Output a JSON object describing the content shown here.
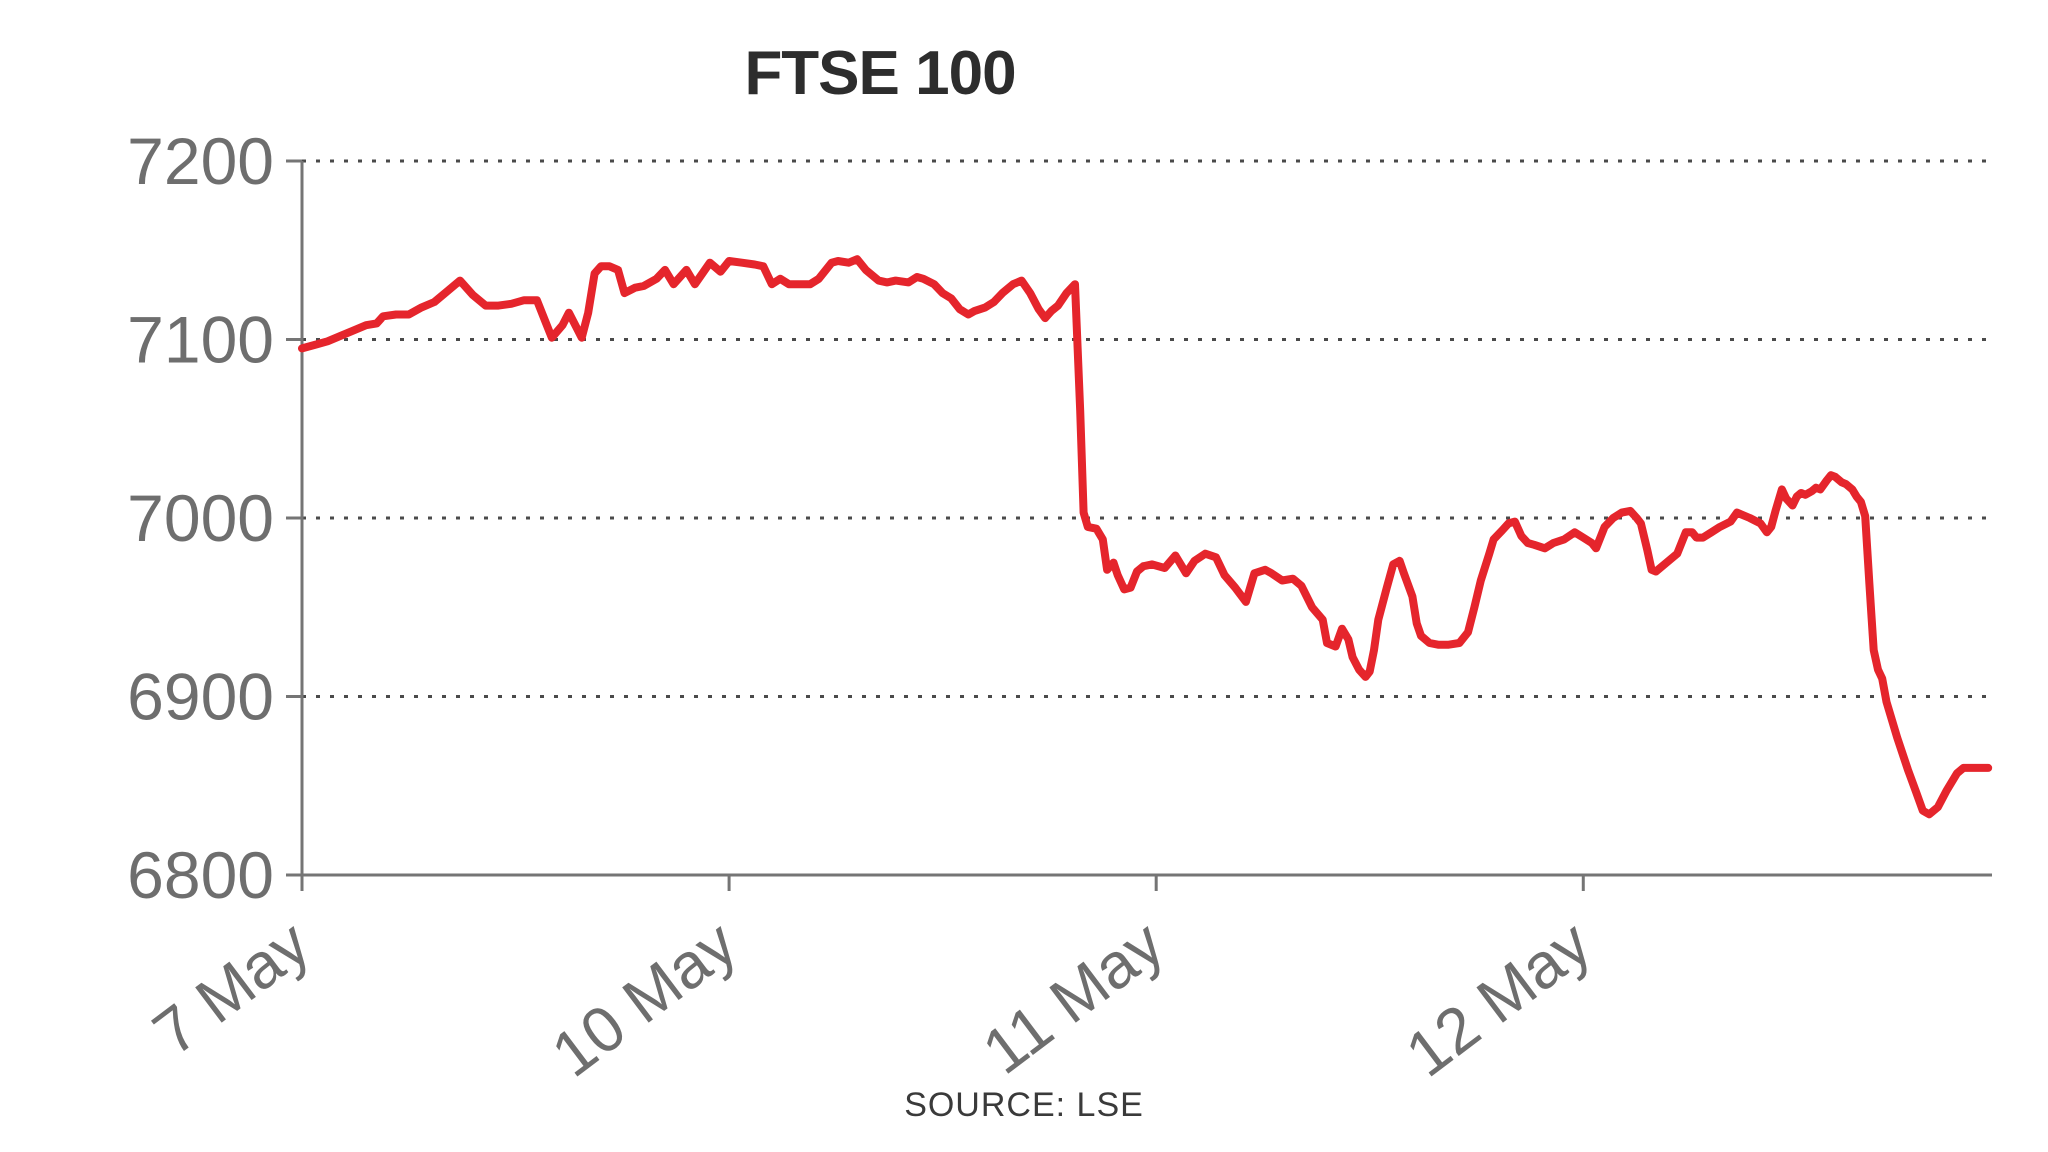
{
  "chart_data": {
    "type": "line",
    "title": "FTSE 100",
    "source_label": "SOURCE: LSE",
    "xlabel": "",
    "ylabel": "",
    "legend": "none",
    "grid": "horizontal dotted gridlines at labeled y ticks",
    "x_unit": "trading days (7 May = 0, 10 May = 1, 11 May = 2, 12 May = 3; intraday fractions)",
    "x_range": [
      0,
      3.957
    ],
    "y_range": [
      6800,
      7200
    ],
    "y_ticks": [
      6800,
      6900,
      7000,
      7100,
      7200
    ],
    "x_tick_positions": [
      0,
      1,
      2,
      3
    ],
    "x_tick_labels": [
      "7 May",
      "10 May",
      "11 May",
      "12 May"
    ],
    "line_color": "#e5252c",
    "axis_color": "#757575",
    "grid_color": "#4a4a4a",
    "tick_label_color": "#6e6e6e",
    "title_color": "#2d2d2d",
    "source_color": "#3a3a3a",
    "series": [
      {
        "name": "FTSE 100",
        "x": [
          0.0,
          0.03,
          0.06,
          0.09,
          0.12,
          0.15,
          0.175,
          0.19,
          0.22,
          0.25,
          0.28,
          0.31,
          0.34,
          0.37,
          0.4,
          0.43,
          0.46,
          0.49,
          0.52,
          0.55,
          0.57,
          0.585,
          0.61,
          0.625,
          0.64,
          0.655,
          0.67,
          0.685,
          0.7,
          0.72,
          0.74,
          0.755,
          0.78,
          0.8,
          0.83,
          0.85,
          0.87,
          0.9,
          0.92,
          0.955,
          0.98,
          1.0,
          1.03,
          1.06,
          1.08,
          1.1,
          1.12,
          1.14,
          1.17,
          1.19,
          1.21,
          1.24,
          1.255,
          1.28,
          1.3,
          1.32,
          1.35,
          1.37,
          1.39,
          1.42,
          1.44,
          1.455,
          1.48,
          1.5,
          1.52,
          1.54,
          1.56,
          1.575,
          1.6,
          1.62,
          1.64,
          1.665,
          1.685,
          1.705,
          1.725,
          1.74,
          1.755,
          1.77,
          1.79,
          1.81,
          1.822,
          1.83,
          1.84,
          1.86,
          1.875,
          1.885,
          1.9,
          1.91,
          1.925,
          1.94,
          1.955,
          1.97,
          1.99,
          2.02,
          2.045,
          2.07,
          2.09,
          2.115,
          2.14,
          2.16,
          2.185,
          2.21,
          2.23,
          2.255,
          2.27,
          2.295,
          2.32,
          2.34,
          2.365,
          2.39,
          2.4,
          2.42,
          2.435,
          2.45,
          2.46,
          2.475,
          2.49,
          2.5,
          2.51,
          2.52,
          2.54,
          2.555,
          2.57,
          2.58,
          2.6,
          2.61,
          2.62,
          2.64,
          2.66,
          2.685,
          2.71,
          2.73,
          2.745,
          2.76,
          2.78,
          2.79,
          2.81,
          2.825,
          2.84,
          2.855,
          2.87,
          2.885,
          2.91,
          2.93,
          2.955,
          2.98,
          3.0,
          3.02,
          3.03,
          3.05,
          3.07,
          3.09,
          3.11,
          3.125,
          3.135,
          3.15,
          3.16,
          3.17,
          3.195,
          3.22,
          3.24,
          3.255,
          3.265,
          3.28,
          3.3,
          3.32,
          3.345,
          3.36,
          3.37,
          3.39,
          3.415,
          3.43,
          3.44,
          3.45,
          3.465,
          3.475,
          3.49,
          3.5,
          3.51,
          3.52,
          3.535,
          3.545,
          3.555,
          3.57,
          3.58,
          3.59,
          3.605,
          3.615,
          3.63,
          3.64,
          3.65,
          3.66,
          3.665,
          3.67,
          3.675,
          3.68,
          3.69,
          3.7,
          3.71,
          3.735,
          3.76,
          3.78,
          3.795,
          3.81,
          3.83,
          3.85,
          3.875,
          3.89,
          3.92,
          3.948
        ],
        "values": [
          7095,
          7097,
          7099,
          7102,
          7105,
          7108,
          7109,
          7113,
          7114,
          7114,
          7118,
          7121,
          7127,
          7133,
          7125,
          7119,
          7119,
          7120,
          7122,
          7122,
          7110,
          7101,
          7108,
          7115,
          7108,
          7101,
          7115,
          7137,
          7141,
          7141,
          7139,
          7126,
          7129,
          7130,
          7134,
          7139,
          7131,
          7139,
          7131,
          7143,
          7138,
          7144,
          7143,
          7142,
          7141,
          7131,
          7134,
          7131,
          7131,
          7131,
          7134,
          7143,
          7144,
          7143,
          7145,
          7139,
          7133,
          7132,
          7133,
          7132,
          7135,
          7134,
          7131,
          7126,
          7123,
          7117,
          7114,
          7116,
          7118,
          7121,
          7126,
          7131,
          7133,
          7126,
          7117,
          7112,
          7116,
          7119,
          7126,
          7131,
          7060,
          7003,
          6995,
          6994,
          6988,
          6971,
          6975,
          6968,
          6960,
          6961,
          6970,
          6973,
          6974,
          6972,
          6979,
          6969,
          6976,
          6980,
          6978,
          6968,
          6961,
          6953,
          6969,
          6971,
          6969,
          6965,
          6966,
          6962,
          6950,
          6943,
          6930,
          6928,
          6938,
          6932,
          6922,
          6915,
          6911,
          6914,
          6926,
          6943,
          6961,
          6974,
          6976,
          6969,
          6956,
          6941,
          6934,
          6930,
          6929,
          6929,
          6930,
          6936,
          6950,
          6965,
          6980,
          6988,
          6993,
          6997,
          6998,
          6990,
          6986,
          6985,
          6983,
          6986,
          6988,
          6992,
          6989,
          6986,
          6983,
          6995,
          7000,
          7003,
          7004,
          7000,
          6997,
          6982,
          6971,
          6970,
          6975,
          6980,
          6992,
          6992,
          6989,
          6989,
          6992,
          6995,
          6998,
          7003,
          7002,
          7000,
          6997,
          6992,
          6995,
          7004,
          7016,
          7011,
          7007,
          7012,
          7014,
          7013,
          7015,
          7017,
          7016,
          7021,
          7024,
          7023,
          7020,
          7019,
          7016,
          7012,
          7009,
          7001,
          6982,
          6963,
          6944,
          6926,
          6915,
          6910,
          6897,
          6877,
          6859,
          6846,
          6836,
          6834,
          6838,
          6847,
          6857,
          6860,
          6860,
          6860
        ]
      }
    ]
  }
}
